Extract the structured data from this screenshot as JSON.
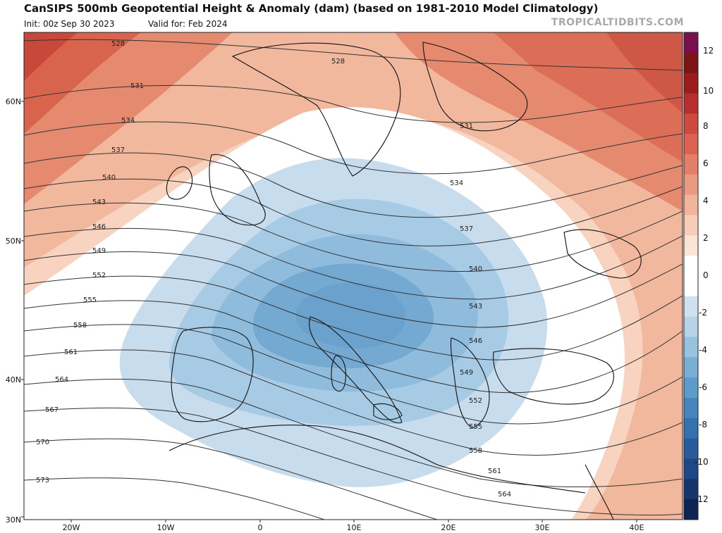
{
  "header": {
    "title": "CanSIPS 500mb Geopotential Height & Anomaly (dam) (based on 1981-2010 Model Climatology)",
    "init": "Init: 00z Sep 30 2023",
    "valid": "Valid for: Feb 2024",
    "brand": "TROPICALTIDBITS.COM"
  },
  "axes": {
    "lat_labels": [
      "60N",
      "50N",
      "40N",
      "30N"
    ],
    "lon_labels": [
      "20W",
      "10W",
      "0",
      "10E",
      "20E",
      "30E",
      "40E"
    ]
  },
  "colorbar": {
    "labels": [
      "12",
      "10",
      "8",
      "6",
      "4",
      "2",
      "0",
      "-2",
      "-4",
      "-6",
      "-8",
      "-10",
      "-12"
    ],
    "colors": [
      "#7a0f4f",
      "#7b1414",
      "#9c1b1b",
      "#b82d2d",
      "#cc4a3e",
      "#d9634e",
      "#e27f66",
      "#ea9a80",
      "#f1b59c",
      "#f7cdb8",
      "#fbe3d6",
      "#ffffff",
      "#ffffff",
      "#cfe1ee",
      "#b6d3e8",
      "#98c2df",
      "#7aafd5",
      "#5d9bcb",
      "#4686bf",
      "#3570b0",
      "#275b9c",
      "#1d4785",
      "#16356c",
      "#0f2452"
    ]
  },
  "contours": {
    "labels": [
      "528",
      "531",
      "534",
      "537",
      "540",
      "543",
      "546",
      "549",
      "552",
      "555",
      "558",
      "561",
      "564",
      "567",
      "570",
      "573"
    ],
    "inner_labels": [
      "528",
      "531",
      "534",
      "537",
      "540",
      "543",
      "546",
      "549",
      "552",
      "555",
      "558",
      "561",
      "564"
    ]
  }
}
